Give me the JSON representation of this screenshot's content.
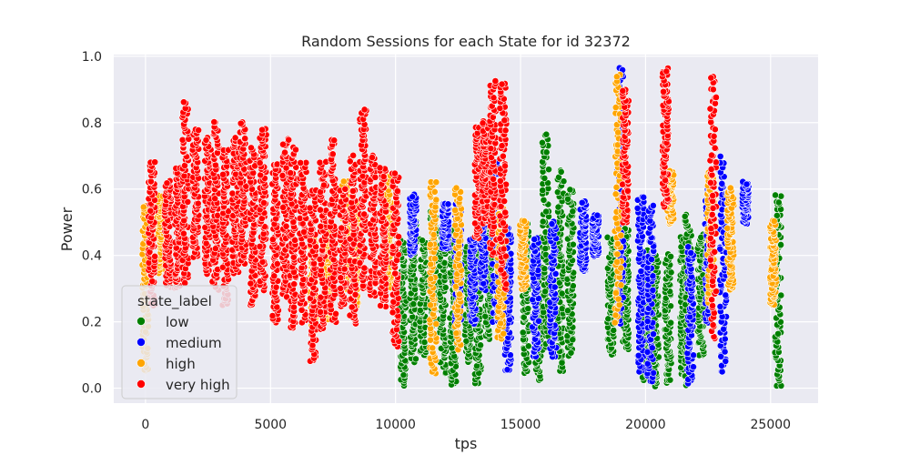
{
  "chart_data": {
    "type": "scatter",
    "title": "Random Sessions for each State for id 32372",
    "xlabel": "tps",
    "ylabel": "Power",
    "xlim": [
      -1270,
      26900
    ],
    "ylim": [
      -0.045,
      1.005
    ],
    "xticks": [
      0,
      5000,
      10000,
      15000,
      20000,
      25000
    ],
    "xtick_labels": [
      "0",
      "5000",
      "10000",
      "15000",
      "20000",
      "25000"
    ],
    "yticks": [
      0.0,
      0.2,
      0.4,
      0.6,
      0.8,
      1.0
    ],
    "ytick_labels": [
      "0.0",
      "0.2",
      "0.4",
      "0.6",
      "0.8",
      "1.0"
    ],
    "grid": true,
    "background": "#eaeaf2",
    "legend": {
      "title": "state_label",
      "placement": "lower-left"
    },
    "series": [
      {
        "name": "low",
        "color": "#008000",
        "sessions": [
          {
            "x": 10300,
            "ymin": 0.01,
            "ymax": 0.45
          },
          {
            "x": 10700,
            "ymin": 0.08,
            "ymax": 0.5
          },
          {
            "x": 11100,
            "ymin": 0.1,
            "ymax": 0.45
          },
          {
            "x": 11500,
            "ymin": 0.15,
            "ymax": 0.55
          },
          {
            "x": 11900,
            "ymin": 0.05,
            "ymax": 0.48
          },
          {
            "x": 12300,
            "ymin": 0.01,
            "ymax": 0.47
          },
          {
            "x": 12900,
            "ymin": 0.08,
            "ymax": 0.42
          },
          {
            "x": 13300,
            "ymin": 0.02,
            "ymax": 0.44
          },
          {
            "x": 13700,
            "ymin": 0.15,
            "ymax": 0.5
          },
          {
            "x": 15200,
            "ymin": 0.05,
            "ymax": 0.5
          },
          {
            "x": 15700,
            "ymin": 0.03,
            "ymax": 0.45
          },
          {
            "x": 16000,
            "ymin": 0.12,
            "ymax": 0.76
          },
          {
            "x": 16600,
            "ymin": 0.05,
            "ymax": 0.65
          },
          {
            "x": 17000,
            "ymin": 0.1,
            "ymax": 0.6
          },
          {
            "x": 18600,
            "ymin": 0.1,
            "ymax": 0.45
          },
          {
            "x": 19200,
            "ymin": 0.12,
            "ymax": 0.48
          },
          {
            "x": 20000,
            "ymin": 0.02,
            "ymax": 0.42
          },
          {
            "x": 20400,
            "ymin": 0.01,
            "ymax": 0.4
          },
          {
            "x": 20900,
            "ymin": 0.02,
            "ymax": 0.4
          },
          {
            "x": 21500,
            "ymin": 0.03,
            "ymax": 0.45
          },
          {
            "x": 21700,
            "ymin": 0.01,
            "ymax": 0.52
          },
          {
            "x": 22200,
            "ymin": 0.1,
            "ymax": 0.46
          },
          {
            "x": 25300,
            "ymin": 0.01,
            "ymax": 0.58
          }
        ]
      },
      {
        "name": "medium",
        "color": "#0000ff",
        "sessions": [
          {
            "x": 10700,
            "ymin": 0.4,
            "ymax": 0.58
          },
          {
            "x": 12000,
            "ymin": 0.42,
            "ymax": 0.56
          },
          {
            "x": 12500,
            "ymin": 0.2,
            "ymax": 0.55
          },
          {
            "x": 13100,
            "ymin": 0.2,
            "ymax": 0.45
          },
          {
            "x": 13500,
            "ymin": 0.3,
            "ymax": 0.58
          },
          {
            "x": 14000,
            "ymin": 0.2,
            "ymax": 0.68
          },
          {
            "x": 14500,
            "ymin": 0.05,
            "ymax": 0.48
          },
          {
            "x": 15600,
            "ymin": 0.1,
            "ymax": 0.45
          },
          {
            "x": 16300,
            "ymin": 0.1,
            "ymax": 0.5
          },
          {
            "x": 17500,
            "ymin": 0.35,
            "ymax": 0.56
          },
          {
            "x": 18000,
            "ymin": 0.4,
            "ymax": 0.52
          },
          {
            "x": 19000,
            "ymin": 0.2,
            "ymax": 0.96
          },
          {
            "x": 19800,
            "ymin": 0.05,
            "ymax": 0.58
          },
          {
            "x": 20200,
            "ymin": 0.02,
            "ymax": 0.55
          },
          {
            "x": 21800,
            "ymin": 0.02,
            "ymax": 0.42
          },
          {
            "x": 22500,
            "ymin": 0.2,
            "ymax": 0.6
          },
          {
            "x": 23100,
            "ymin": 0.05,
            "ymax": 0.7
          },
          {
            "x": 24000,
            "ymin": 0.5,
            "ymax": 0.62
          }
        ]
      },
      {
        "name": "high",
        "color": "#ffa500",
        "sessions": [
          {
            "x": 0,
            "ymin": 0.05,
            "ymax": 0.55
          },
          {
            "x": 600,
            "ymin": 0.35,
            "ymax": 0.58
          },
          {
            "x": 6700,
            "ymin": 0.18,
            "ymax": 0.45
          },
          {
            "x": 7300,
            "ymin": 0.2,
            "ymax": 0.5
          },
          {
            "x": 8000,
            "ymin": 0.3,
            "ymax": 0.62
          },
          {
            "x": 8400,
            "ymin": 0.25,
            "ymax": 0.55
          },
          {
            "x": 9700,
            "ymin": 0.3,
            "ymax": 0.64
          },
          {
            "x": 11500,
            "ymin": 0.05,
            "ymax": 0.62
          },
          {
            "x": 12500,
            "ymin": 0.12,
            "ymax": 0.6
          },
          {
            "x": 14200,
            "ymin": 0.15,
            "ymax": 0.55
          },
          {
            "x": 15100,
            "ymin": 0.3,
            "ymax": 0.5
          },
          {
            "x": 18900,
            "ymin": 0.2,
            "ymax": 0.94
          },
          {
            "x": 21000,
            "ymin": 0.5,
            "ymax": 0.65
          },
          {
            "x": 22600,
            "ymin": 0.25,
            "ymax": 0.65
          },
          {
            "x": 23400,
            "ymin": 0.3,
            "ymax": 0.6
          },
          {
            "x": 25100,
            "ymin": 0.25,
            "ymax": 0.5
          }
        ]
      },
      {
        "name": "very high",
        "color": "#ff0000",
        "sessions": [
          {
            "x": 250,
            "ymin": 0.25,
            "ymax": 0.68
          },
          {
            "x": 900,
            "ymin": 0.3,
            "ymax": 0.62
          },
          {
            "x": 1300,
            "ymin": 0.3,
            "ymax": 0.66
          },
          {
            "x": 1600,
            "ymin": 0.32,
            "ymax": 0.86
          },
          {
            "x": 2000,
            "ymin": 0.4,
            "ymax": 0.78
          },
          {
            "x": 2500,
            "ymin": 0.35,
            "ymax": 0.75
          },
          {
            "x": 2800,
            "ymin": 0.3,
            "ymax": 0.8
          },
          {
            "x": 3200,
            "ymin": 0.25,
            "ymax": 0.72
          },
          {
            "x": 3600,
            "ymin": 0.35,
            "ymax": 0.75
          },
          {
            "x": 3900,
            "ymin": 0.38,
            "ymax": 0.8
          },
          {
            "x": 4300,
            "ymin": 0.25,
            "ymax": 0.72
          },
          {
            "x": 4700,
            "ymin": 0.3,
            "ymax": 0.78
          },
          {
            "x": 5200,
            "ymin": 0.2,
            "ymax": 0.68
          },
          {
            "x": 5600,
            "ymin": 0.28,
            "ymax": 0.75
          },
          {
            "x": 5900,
            "ymin": 0.18,
            "ymax": 0.72
          },
          {
            "x": 6300,
            "ymin": 0.2,
            "ymax": 0.68
          },
          {
            "x": 6700,
            "ymin": 0.08,
            "ymax": 0.6
          },
          {
            "x": 7100,
            "ymin": 0.18,
            "ymax": 0.68
          },
          {
            "x": 7500,
            "ymin": 0.2,
            "ymax": 0.75
          },
          {
            "x": 7900,
            "ymin": 0.25,
            "ymax": 0.6
          },
          {
            "x": 8300,
            "ymin": 0.2,
            "ymax": 0.7
          },
          {
            "x": 8700,
            "ymin": 0.3,
            "ymax": 0.84
          },
          {
            "x": 9100,
            "ymin": 0.28,
            "ymax": 0.7
          },
          {
            "x": 9500,
            "ymin": 0.25,
            "ymax": 0.66
          },
          {
            "x": 10000,
            "ymin": 0.13,
            "ymax": 0.65
          },
          {
            "x": 13300,
            "ymin": 0.45,
            "ymax": 0.78
          },
          {
            "x": 13600,
            "ymin": 0.5,
            "ymax": 0.8
          },
          {
            "x": 13900,
            "ymin": 0.4,
            "ymax": 0.92
          },
          {
            "x": 14300,
            "ymin": 0.3,
            "ymax": 0.92
          },
          {
            "x": 19200,
            "ymin": 0.5,
            "ymax": 0.9
          },
          {
            "x": 20800,
            "ymin": 0.55,
            "ymax": 0.96
          },
          {
            "x": 22700,
            "ymin": 0.15,
            "ymax": 0.94
          }
        ]
      }
    ]
  }
}
